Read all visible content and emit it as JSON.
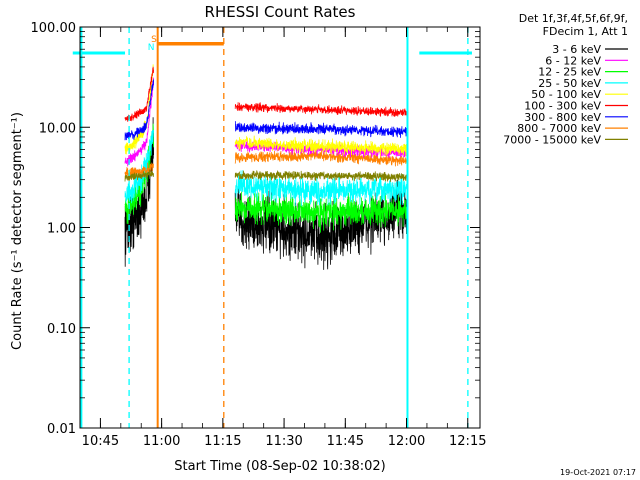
{
  "chart_data": {
    "type": "line",
    "title": "RHESSI Count Rates",
    "xlabel": "Start Time (08-Sep-02 10:38:02)",
    "ylabel": "Count Rate (s⁻¹ detector segment⁻¹)",
    "x_units": "minutes after 10:38:02 UT",
    "xlim": [
      1.97,
      99.97
    ],
    "ylim": [
      0.01,
      100
    ],
    "y_scale": "log",
    "x_ticks": [
      {
        "label": "10:45",
        "value": 6.97
      },
      {
        "label": "11:00",
        "value": 21.97
      },
      {
        "label": "11:15",
        "value": 36.97
      },
      {
        "label": "11:30",
        "value": 51.97
      },
      {
        "label": "11:45",
        "value": 66.97
      },
      {
        "label": "12:00",
        "value": 81.97
      },
      {
        "label": "12:15",
        "value": 96.97
      }
    ],
    "y_ticks": [
      {
        "label": "100.00",
        "value": 100
      },
      {
        "label": "10.00",
        "value": 10
      },
      {
        "label": "1.00",
        "value": 1
      },
      {
        "label": "0.10",
        "value": 0.1
      },
      {
        "label": "0.01",
        "value": 0.01
      }
    ],
    "legend": {
      "position": "top-right",
      "header": [
        "Det 1f,3f,4f,5f,6f,9f,",
        "FDecim 1, Att 1"
      ]
    },
    "segments": [
      [
        13.0,
        20.0
      ],
      [
        40.0,
        82.3
      ]
    ],
    "series": [
      {
        "name": "3 - 6 keV",
        "color": "#000000",
        "start": [
          1.0,
          3.0
        ],
        "end": [
          1.8,
          8.0
        ],
        "second": [
          1.2,
          0.8,
          1.5
        ]
      },
      {
        "name": "6 - 12 keV",
        "color": "#ff00ff",
        "start": [
          4.5,
          9.0
        ],
        "end": [
          8.0,
          30.0
        ],
        "second": [
          6.5,
          6.0,
          5.5
        ]
      },
      {
        "name": "12 - 25 keV",
        "color": "#00ff00",
        "start": [
          1.5,
          5.0
        ],
        "end": [
          2.2,
          9.0
        ],
        "second": [
          1.6,
          1.4,
          1.5
        ]
      },
      {
        "name": "25 - 50 keV",
        "color": "#00ffff",
        "start": [
          2.0,
          6.0
        ],
        "end": [
          2.8,
          10.0
        ],
        "second": [
          2.6,
          2.3,
          2.4
        ]
      },
      {
        "name": "50 - 100 keV",
        "color": "#ffff00",
        "start": [
          6.0,
          14.0
        ],
        "end": [
          10.0,
          40.0
        ],
        "second": [
          7.0,
          6.5,
          6.0
        ]
      },
      {
        "name": "100 - 300 keV",
        "color": "#ff0000",
        "start": [
          12.0,
          18.0
        ],
        "end": [
          15.0,
          40.0
        ],
        "second": [
          16.0,
          15.0,
          14.0
        ]
      },
      {
        "name": "300 - 800 keV",
        "color": "#0000ff",
        "start": [
          8.0,
          12.0
        ],
        "end": [
          11.0,
          30.0
        ],
        "second": [
          10.0,
          9.5,
          9.0
        ]
      },
      {
        "name": "800 - 7000 keV",
        "color": "#ff8000",
        "start": [
          3.5,
          3.8
        ],
        "end": [
          3.7,
          4.2
        ],
        "second": [
          5.0,
          5.2,
          4.6
        ]
      },
      {
        "name": "7000 - 15000 keV",
        "color": "#808000",
        "start": [
          3.2,
          3.4
        ],
        "end": [
          3.3,
          3.5
        ],
        "second": [
          3.3,
          3.3,
          3.2
        ]
      }
    ],
    "annotations": {
      "saa_level": 55,
      "saa_intervals": [
        [
          0.2,
          13.0
        ],
        [
          85.1,
          98.0
        ]
      ],
      "saa_color": "#00ffff",
      "night_level": 68,
      "night_interval": [
        21.0,
        37.2
      ],
      "night_color": "#ff8000",
      "dashed_lines": [
        {
          "x": 2.3,
          "color": "#00ffff",
          "style": "solid"
        },
        {
          "x": 14.0,
          "color": "#00ffff",
          "style": "dashed"
        },
        {
          "x": 21.0,
          "color": "#ff8000",
          "style": "solid"
        },
        {
          "x": 37.2,
          "color": "#ff8000",
          "style": "dashed"
        },
        {
          "x": 82.2,
          "color": "#00ffff",
          "style": "solid"
        },
        {
          "x": 97.0,
          "color": "#00ffff",
          "style": "dashed"
        }
      ],
      "flags": [
        {
          "text": "S",
          "color": "#ff8000",
          "x": 20.1
        },
        {
          "text": "N",
          "color": "#00ffff",
          "x": 19.4
        }
      ]
    },
    "timestamp": "19-Oct-2021 07:17"
  }
}
